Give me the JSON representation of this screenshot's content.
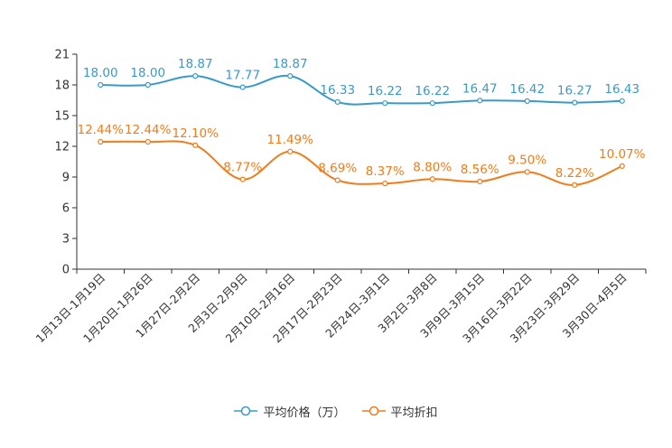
{
  "chart_data": {
    "type": "line",
    "categories": [
      "1月13日-1月19日",
      "1月20日-1月26日",
      "1月27日-2月2日",
      "2月3日-2月9日",
      "2月10日-2月16日",
      "2月17日-2月23日",
      "2月24日-3月1日",
      "3月2日-3月8日",
      "3月9日-3月15日",
      "3月16日-3月22日",
      "3月23日-3月29日",
      "3月30日-4月5日"
    ],
    "series": [
      {
        "name": "平均价格（万）",
        "color": "#3a9ac7",
        "values": [
          18.0,
          18.0,
          18.87,
          17.77,
          18.87,
          16.33,
          16.22,
          16.22,
          16.47,
          16.42,
          16.27,
          16.43
        ],
        "labels": [
          "18.00",
          "18.00",
          "18.87",
          "17.77",
          "18.87",
          "16.33",
          "16.22",
          "16.22",
          "16.47",
          "16.42",
          "16.27",
          "16.43"
        ]
      },
      {
        "name": "平均折扣",
        "color": "#f07c1a",
        "values": [
          12.44,
          12.44,
          12.1,
          8.77,
          11.49,
          8.69,
          8.37,
          8.8,
          8.56,
          9.5,
          8.22,
          10.07
        ],
        "labels": [
          "12.44%",
          "12.44%",
          "12.10%",
          "8.77%",
          "11.49%",
          "8.69%",
          "8.37%",
          "8.80%",
          "8.56%",
          "9.50%",
          "8.22%",
          "10.07%"
        ]
      }
    ],
    "yticks": [
      "0",
      "3",
      "6",
      "9",
      "12",
      "15",
      "18",
      "21"
    ],
    "ylim": [
      0,
      21
    ],
    "title": "",
    "xlabel": "",
    "ylabel": "",
    "legend_position": "bottom-center"
  }
}
